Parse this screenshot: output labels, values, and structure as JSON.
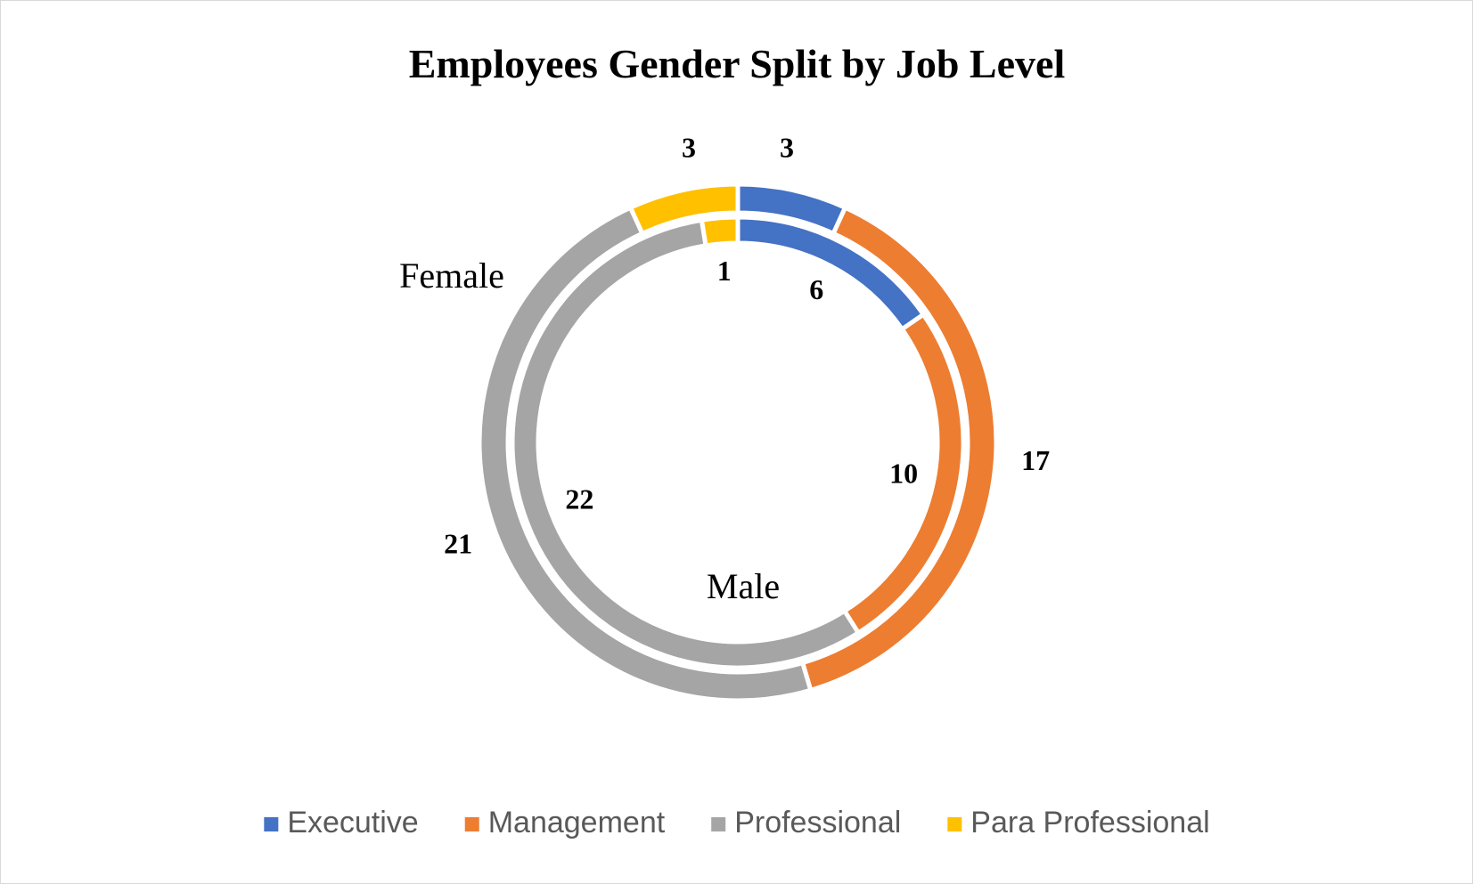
{
  "chart_data": {
    "type": "doughnut",
    "title": "Employees Gender Split by Job Level",
    "categories": [
      "Executive",
      "Management",
      "Professional",
      "Para Professional"
    ],
    "colors": [
      "#4472c4",
      "#ed7d31",
      "#a5a5a5",
      "#ffc000"
    ],
    "series": [
      {
        "name": "Female",
        "values": [
          3,
          17,
          21,
          3
        ]
      },
      {
        "name": "Male",
        "values": [
          6,
          10,
          22,
          1
        ]
      }
    ],
    "legend": "bottom"
  }
}
